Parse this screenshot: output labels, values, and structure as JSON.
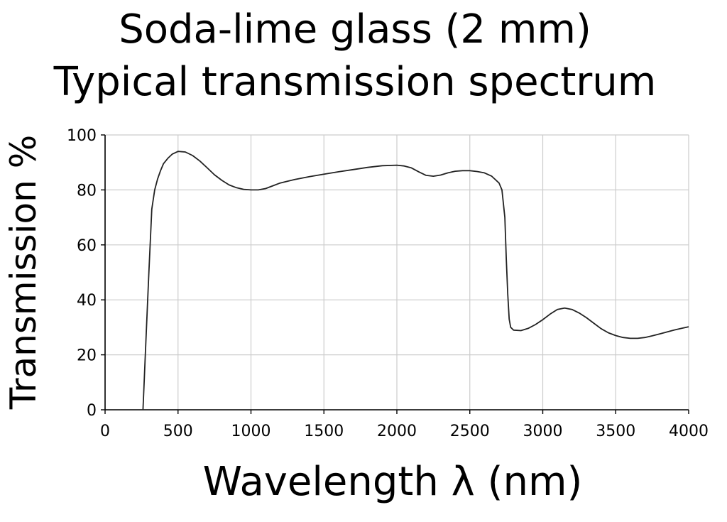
{
  "chart_data": {
    "type": "line",
    "title": [
      "Soda-lime glass (2 mm)",
      "Typical transmission spectrum"
    ],
    "xlabel": "Wavelength λ (nm)",
    "ylabel": "Transmission %",
    "xlim": [
      0,
      4000
    ],
    "ylim": [
      0,
      100
    ],
    "xticks": [
      0,
      500,
      1000,
      1500,
      2000,
      2500,
      3000,
      3500,
      4000
    ],
    "yticks": [
      0,
      20,
      40,
      60,
      80,
      100
    ],
    "grid": true,
    "line_color": "#222222",
    "grid_color": "#cccccc",
    "series": [
      {
        "x": [
          260,
          280,
          300,
          320,
          340,
          360,
          380,
          400,
          430,
          460,
          500,
          550,
          600,
          650,
          700,
          750,
          800,
          850,
          900,
          950,
          1000,
          1050,
          1100,
          1150,
          1200,
          1300,
          1400,
          1500,
          1600,
          1700,
          1800,
          1900,
          2000,
          2050,
          2100,
          2150,
          2200,
          2250,
          2300,
          2350,
          2400,
          2450,
          2500,
          2550,
          2600,
          2650,
          2700,
          2720,
          2740,
          2750,
          2760,
          2770,
          2780,
          2800,
          2850,
          2900,
          2950,
          3000,
          3050,
          3100,
          3150,
          3200,
          3250,
          3300,
          3350,
          3400,
          3450,
          3500,
          3550,
          3600,
          3650,
          3700,
          3750,
          3800,
          3850,
          3900,
          3950,
          4000
        ],
        "y": [
          0,
          25,
          50,
          73,
          80,
          84,
          87,
          89.5,
          91.5,
          93,
          94,
          93.8,
          92.5,
          90.5,
          88,
          85.5,
          83.5,
          81.8,
          80.8,
          80.2,
          80,
          80,
          80.5,
          81.5,
          82.5,
          83.8,
          84.8,
          85.7,
          86.6,
          87.4,
          88.2,
          88.8,
          89,
          88.7,
          88,
          86.6,
          85.3,
          85,
          85.4,
          86.2,
          86.8,
          87,
          87,
          86.7,
          86.2,
          85,
          82.5,
          80,
          70,
          55,
          42,
          33,
          30,
          29,
          28.8,
          29.6,
          31,
          32.8,
          34.8,
          36.5,
          37,
          36.5,
          35.2,
          33.5,
          31.5,
          29.5,
          28,
          27,
          26.3,
          26,
          26,
          26.3,
          26.9,
          27.6,
          28.3,
          29,
          29.6,
          30.2
        ]
      }
    ]
  }
}
